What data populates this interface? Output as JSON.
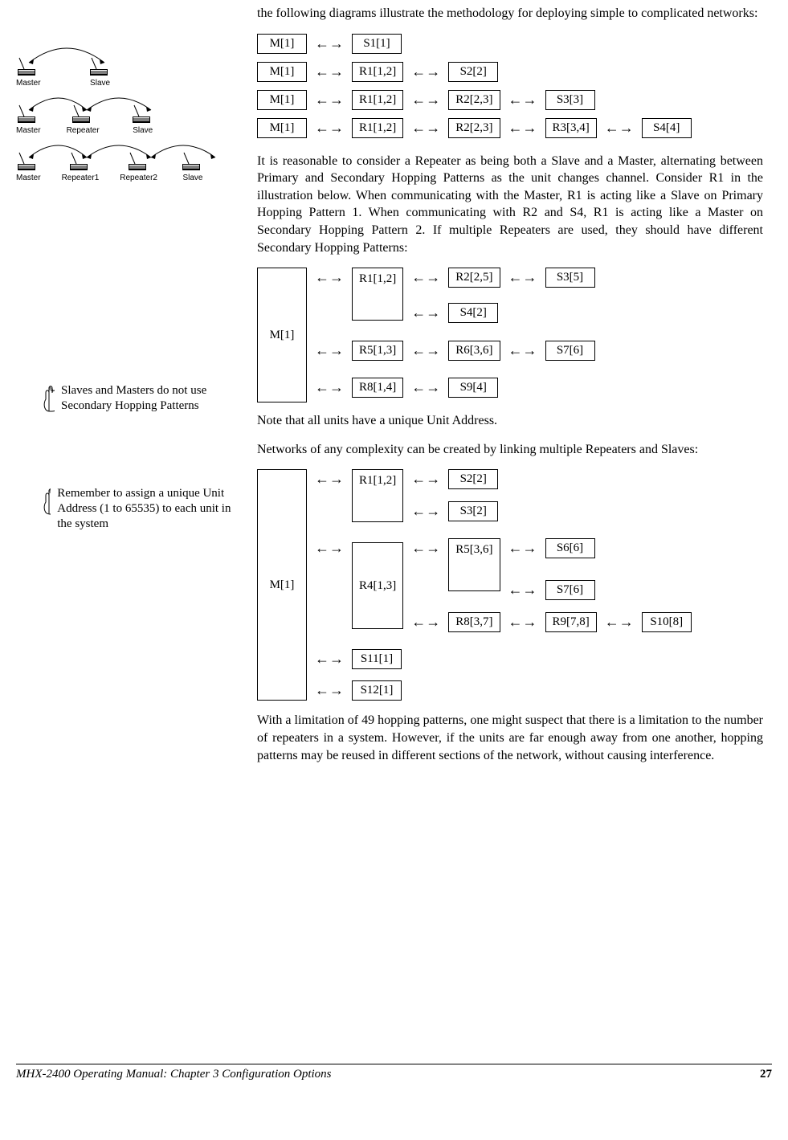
{
  "intro": "the following diagrams illustrate the methodology for deploying simple to complicated networks:",
  "chains": [
    [
      "M[1]",
      "S1[1]"
    ],
    [
      "M[1]",
      "R1[1,2]",
      "S2[2]"
    ],
    [
      "M[1]",
      "R1[1,2]",
      "R2[2,3]",
      "S3[3]"
    ],
    [
      "M[1]",
      "R1[1,2]",
      "R2[2,3]",
      "R3[3,4]",
      "S4[4]"
    ]
  ],
  "para2": "It is reasonable to consider a Repeater as being both a Slave and a Master, alternating between Primary and Secondary Hopping Patterns as the unit changes channel.  Consider R1 in the illustration below.  When communicating with the Master, R1 is acting like a Slave on Primary Hopping Pattern 1.  When communicating with R2 and S4, R1 is acting like a Master on Secondary Hopping Pattern 2.  If multiple Repeaters are used, they should have different Secondary Hopping Patterns:",
  "tree1": {
    "root": "M[1]",
    "branches": [
      {
        "node": "R1[1,2]",
        "children": [
          {
            "node": "R2[2,5]",
            "children": [
              {
                "node": "S3[5]"
              }
            ]
          },
          {
            "node": "S4[2]"
          }
        ]
      },
      {
        "node": "R5[1,3]",
        "children": [
          {
            "node": "R6[3,6]",
            "children": [
              {
                "node": "S7[6]"
              }
            ]
          }
        ]
      },
      {
        "node": "R8[1,4]",
        "children": [
          {
            "node": "S9[4]"
          }
        ]
      }
    ]
  },
  "para3": "Note that all units have a unique Unit Address.",
  "para4": "Networks of any complexity can be created by linking multiple Repeaters and Slaves:",
  "tree2_root": "M[1]",
  "tree2": {
    "R1": "R1[1,2]",
    "S2": "S2[2]",
    "S3": "S3[2]",
    "R4": "R4[1,3]",
    "R5": "R5[3,6]",
    "S6": "S6[6]",
    "S7": "S7[6]",
    "R8": "R8[3,7]",
    "R9": "R9[7,8]",
    "S10": "S10[8]",
    "S11": "S11[1]",
    "S12": "S12[1]"
  },
  "para5": "With a limitation of 49 hopping patterns, one might suspect that there is a limitation to the number of repeaters in a system.  However, if the units are far enough away from one another, hopping patterns may be reused in different sections of the network, without causing interference.",
  "side_labels": {
    "master": "Master",
    "slave": "Slave",
    "repeater": "Repeater",
    "r1": "Repeater1",
    "r2": "Repeater2"
  },
  "note1": "Slaves and Masters do not use Secondary Hopping Patterns",
  "note2": "Remember to assign a unique Unit Address (1 to 65535) to each unit in the system",
  "footer": "MHX-2400 Operating Manual: Chapter 3 Configuration Options",
  "pageno": "27",
  "arrow": "↔"
}
